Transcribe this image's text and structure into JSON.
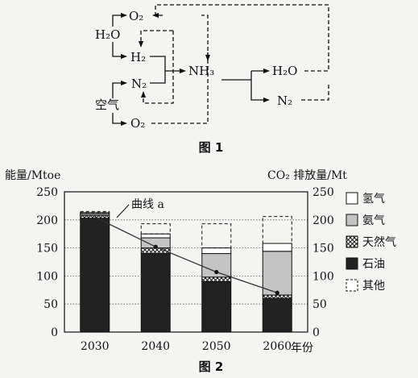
{
  "figure1": {
    "caption": "图 1",
    "nodes": {
      "o2_top": "O₂",
      "h2o_left": "H₂O",
      "h2": "H₂",
      "n2_left": "N₂",
      "air": "空气",
      "o2_bottom": "O₂",
      "nh3": "NH₃",
      "h2o_right": "H₂O",
      "n2_right": "N₂"
    }
  },
  "figure2": {
    "caption": "图 2",
    "curve_label": "曲线 a",
    "chart_data": {
      "type": "bar",
      "stacked": true,
      "categories": [
        "2030",
        "2040",
        "2050",
        "2060"
      ],
      "x_unit_label": "年份",
      "ylabel_left": "能量/Mtoe",
      "ylabel_right": "CO₂ 排放量/Mt",
      "ylim": [
        0,
        250
      ],
      "y_ticks": [
        0,
        50,
        100,
        150,
        200,
        250
      ],
      "grid": "horizontal dotted",
      "legend_position": "right",
      "series": [
        {
          "name": "石油",
          "values": [
            203,
            140,
            90,
            60
          ],
          "style": "solid dark"
        },
        {
          "name": "天然气",
          "values": [
            5,
            10,
            8,
            6
          ],
          "style": "crosshatch"
        },
        {
          "name": "氨气",
          "values": [
            3,
            18,
            42,
            78
          ],
          "style": "light gray"
        },
        {
          "name": "氢气",
          "values": [
            2,
            7,
            10,
            14
          ],
          "style": "white"
        },
        {
          "name": "其他",
          "values": [
            2,
            18,
            43,
            48
          ],
          "style": "dashed outline"
        }
      ],
      "legend_order": [
        "氢气",
        "氨气",
        "天然气",
        "石油",
        "其他"
      ],
      "line": {
        "name": "曲线 a",
        "values": [
          205,
          152,
          107,
          70
        ]
      }
    },
    "colors": {
      "oil": "#222222",
      "ammonia": "#c4c4c4",
      "hydrogen": "#ffffff",
      "grid": "#555555"
    }
  }
}
